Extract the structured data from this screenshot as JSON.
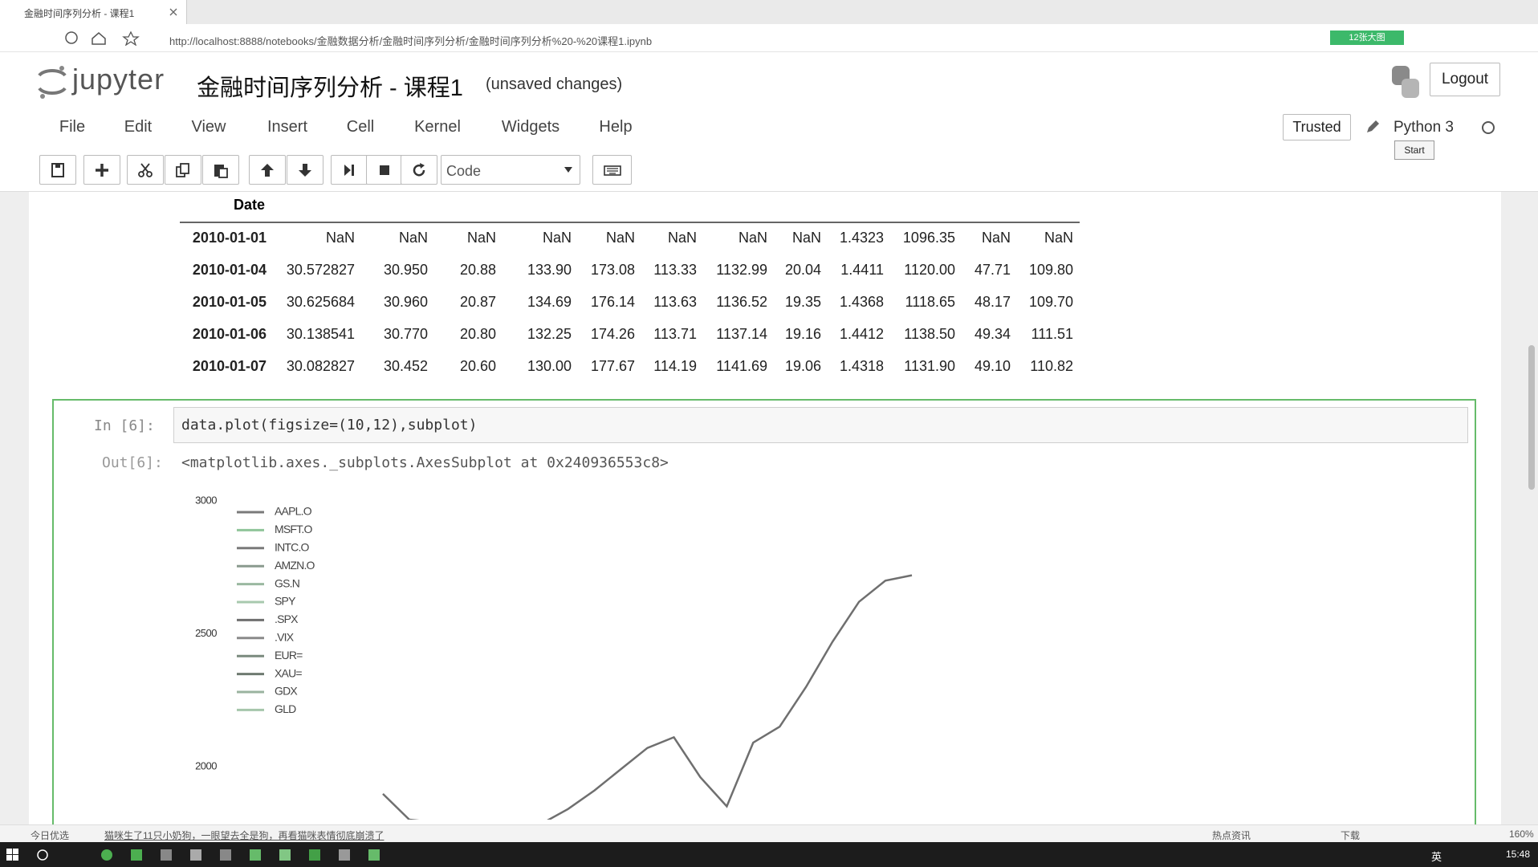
{
  "browser": {
    "tab_title": "金融时间序列分析 - 课程1",
    "url": "http://localhost:8888/notebooks/金融数据分析/金融时间序列分析/金融时间序列分析%20-%20课程1.ipynb",
    "badge": "12张大图"
  },
  "header": {
    "logo": "jupyter",
    "title": "金融时间序列分析 - 课程1",
    "status": "(unsaved changes)",
    "logout": "Logout"
  },
  "menu": [
    "File",
    "Edit",
    "View",
    "Insert",
    "Cell",
    "Kernel",
    "Widgets",
    "Help"
  ],
  "trusted": "Trusted",
  "kernel": "Python 3",
  "tooltip": "Start",
  "toolbar": {
    "cell_type": "Code"
  },
  "table": {
    "index_name": "Date",
    "rows": [
      [
        "2010-01-01",
        "NaN",
        "NaN",
        "NaN",
        "NaN",
        "NaN",
        "NaN",
        "NaN",
        "NaN",
        "1.4323",
        "1096.35",
        "NaN",
        "NaN"
      ],
      [
        "2010-01-04",
        "30.572827",
        "30.950",
        "20.88",
        "133.90",
        "173.08",
        "113.33",
        "1132.99",
        "20.04",
        "1.4411",
        "1120.00",
        "47.71",
        "109.80"
      ],
      [
        "2010-01-05",
        "30.625684",
        "30.960",
        "20.87",
        "134.69",
        "176.14",
        "113.63",
        "1136.52",
        "19.35",
        "1.4368",
        "1118.65",
        "48.17",
        "109.70"
      ],
      [
        "2010-01-06",
        "30.138541",
        "30.770",
        "20.80",
        "132.25",
        "174.26",
        "113.71",
        "1137.14",
        "19.16",
        "1.4412",
        "1138.50",
        "49.34",
        "111.51"
      ],
      [
        "2010-01-07",
        "30.082827",
        "30.452",
        "20.60",
        "130.00",
        "177.67",
        "114.19",
        "1141.69",
        "19.06",
        "1.4318",
        "1131.90",
        "49.10",
        "110.82"
      ]
    ]
  },
  "cell": {
    "prompt_in": "In [6]:",
    "code": "data.plot(figsize=(10,12),subplot)",
    "prompt_out": "Out[6]:",
    "output": "<matplotlib.axes._subplots.AxesSubplot at 0x240936553c8>"
  },
  "chart_data": {
    "type": "line",
    "categories": [
      null,
      null,
      null,
      null,
      null,
      null,
      null,
      null,
      null,
      null,
      null,
      null,
      null,
      null,
      null,
      null,
      null,
      null,
      null,
      null,
      null
    ],
    "ylim": [
      1800,
      3000
    ],
    "yticks": [
      2000,
      2500,
      3000
    ],
    "grid": false,
    "legend": "upper left",
    "series": [
      {
        "name": "AAPL.O",
        "color": "#7a7a7a",
        "values": [
          null,
          null,
          null,
          null,
          null,
          null,
          null,
          null,
          null,
          null,
          null,
          null,
          null,
          null,
          null,
          null,
          null,
          null,
          null,
          null,
          null
        ]
      },
      {
        "name": "MSFT.O",
        "color": "#8fc59a",
        "values": [
          null,
          null,
          null,
          null,
          null,
          null,
          null,
          null,
          null,
          null,
          null,
          null,
          null,
          null,
          null,
          null,
          null,
          null,
          null,
          null,
          null
        ]
      },
      {
        "name": "INTC.O",
        "color": "#7a7a7a",
        "values": [
          null,
          null,
          null,
          null,
          null,
          null,
          null,
          null,
          null,
          null,
          null,
          null,
          null,
          null,
          null,
          null,
          null,
          null,
          null,
          null,
          null
        ]
      },
      {
        "name": "AMZN.O",
        "color": "#8a9a8e",
        "values": [
          null,
          null,
          null,
          null,
          null,
          null,
          null,
          null,
          null,
          null,
          null,
          null,
          null,
          null,
          null,
          null,
          null,
          null,
          null,
          null,
          null
        ]
      },
      {
        "name": "GS.N",
        "color": "#9ab8a0",
        "values": [
          null,
          null,
          null,
          null,
          null,
          null,
          null,
          null,
          null,
          null,
          null,
          null,
          null,
          null,
          null,
          null,
          null,
          null,
          null,
          null,
          null
        ]
      },
      {
        "name": "SPY",
        "color": "#a8c9ae",
        "values": [
          null,
          null,
          null,
          null,
          null,
          null,
          null,
          null,
          null,
          null,
          null,
          null,
          null,
          null,
          null,
          null,
          null,
          null,
          null,
          null,
          null
        ]
      },
      {
        "name": ".SPX",
        "color": "#6f6f6f",
        "values": [
          1897,
          1800,
          1790,
          1795,
          1780,
          1770,
          1785,
          1840,
          1910,
          1990,
          2070,
          2110,
          1960,
          1850,
          2090,
          2150,
          2300,
          2470,
          2620,
          2700,
          2720
        ]
      },
      {
        "name": ".VIX",
        "color": "#8a8a8a",
        "values": [
          null,
          null,
          null,
          null,
          null,
          null,
          null,
          null,
          null,
          null,
          null,
          null,
          null,
          null,
          null,
          null,
          null,
          null,
          null,
          null,
          null
        ]
      },
      {
        "name": "EUR=",
        "color": "#7a8a7e",
        "values": [
          null,
          null,
          null,
          null,
          null,
          null,
          null,
          null,
          null,
          null,
          null,
          null,
          null,
          null,
          null,
          null,
          null,
          null,
          null,
          null,
          null
        ]
      },
      {
        "name": "XAU=",
        "color": "#6e7a70",
        "values": [
          null,
          null,
          null,
          null,
          null,
          null,
          null,
          null,
          null,
          null,
          null,
          null,
          null,
          null,
          null,
          null,
          null,
          null,
          null,
          null,
          null
        ]
      },
      {
        "name": "GDX",
        "color": "#9ab39f",
        "values": [
          null,
          null,
          null,
          null,
          null,
          null,
          null,
          null,
          null,
          null,
          null,
          null,
          null,
          null,
          null,
          null,
          null,
          null,
          null,
          null,
          null
        ]
      },
      {
        "name": "GLD",
        "color": "#a6c6ab",
        "values": [
          null,
          null,
          null,
          null,
          null,
          null,
          null,
          null,
          null,
          null,
          null,
          null,
          null,
          null,
          null,
          null,
          null,
          null,
          null,
          null,
          null
        ]
      }
    ]
  },
  "status_bar": {
    "left": "今日优选",
    "news": "猫咪生了11只小奶狗，一眼望去全是狗，再看猫咪表情彻底崩溃了",
    "hot": "热点资讯",
    "download": "下载",
    "zoom": "160%"
  },
  "taskbar": {
    "ime": "英",
    "clock": "15:48"
  }
}
